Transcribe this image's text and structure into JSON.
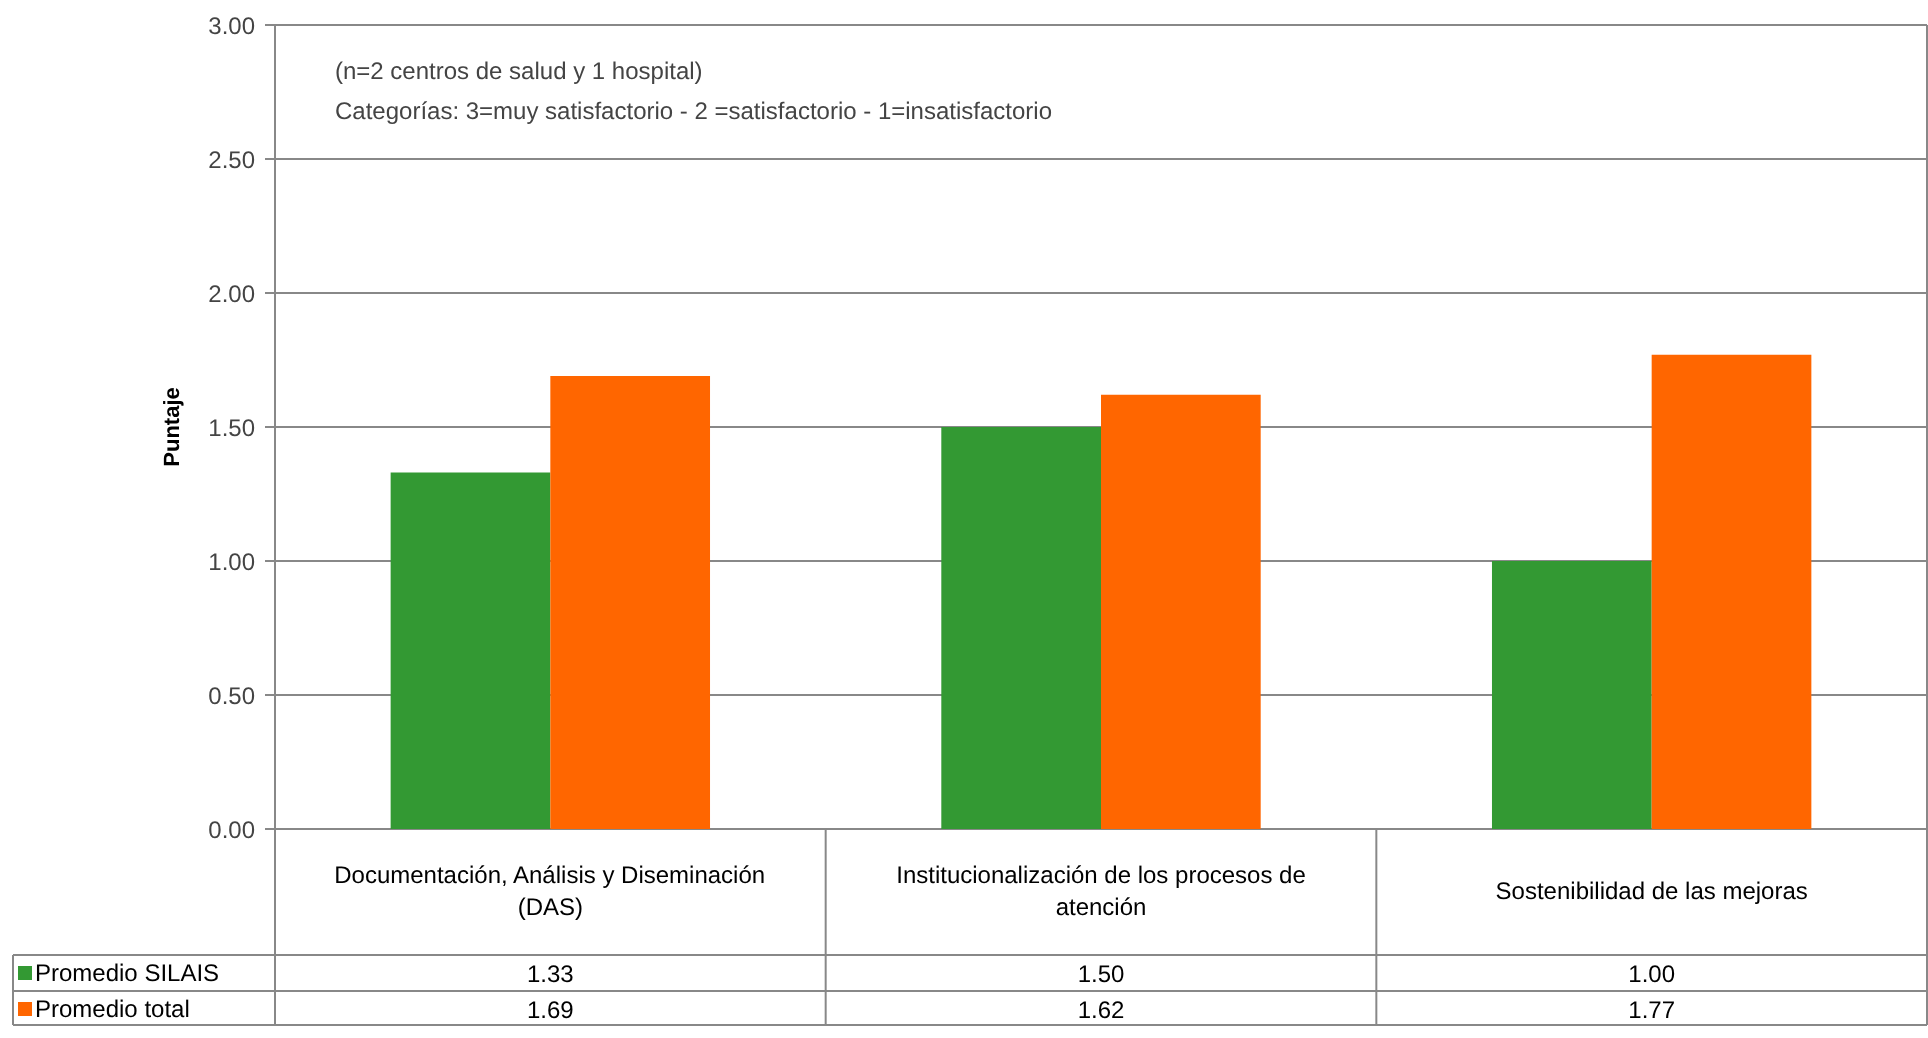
{
  "chart_data": {
    "type": "bar",
    "ylabel": "Puntaje",
    "categories": [
      "Documentación, Análisis y Diseminación (DAS)",
      "Institucionalización de los procesos de atención",
      "Sostenibilidad de las mejoras"
    ],
    "series": [
      {
        "name": "Promedio SILAIS",
        "color": "#339933",
        "values": [
          1.33,
          1.5,
          1.0
        ],
        "value_labels": [
          "1.33",
          "1.50",
          "1.00"
        ]
      },
      {
        "name": "Promedio total",
        "color": "#ff6600",
        "values": [
          1.69,
          1.62,
          1.77
        ],
        "value_labels": [
          "1.69",
          "1.62",
          "1.77"
        ]
      }
    ],
    "ylim": [
      0,
      3
    ],
    "yticks": [
      {
        "value": 0,
        "label": "0.00"
      },
      {
        "value": 0.5,
        "label": "0.50"
      },
      {
        "value": 1,
        "label": "1.00"
      },
      {
        "value": 1.5,
        "label": "1.50"
      },
      {
        "value": 2,
        "label": "2.00"
      },
      {
        "value": 2.5,
        "label": "2.50"
      },
      {
        "value": 3,
        "label": "3.00"
      }
    ],
    "grid": "y",
    "legend": "bottom",
    "annotations": [
      "(n=2 centros de salud y 1 hospital)",
      "Categorías: 3=muy satisfactorio - 2 =satisfactorio - 1=insatisfactorio"
    ]
  }
}
